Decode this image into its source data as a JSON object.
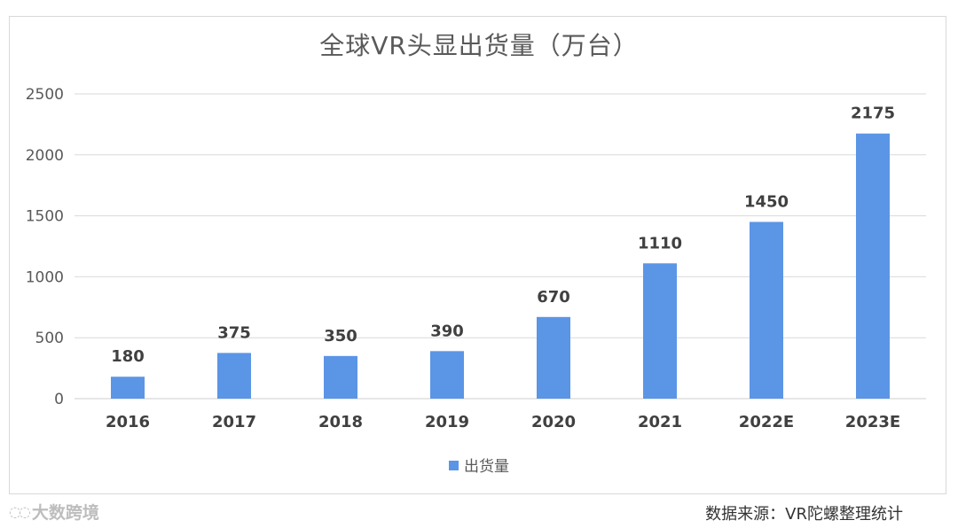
{
  "chart_data": {
    "type": "bar",
    "title": "全球VR头显出货量（万台）",
    "categories": [
      "2016",
      "2017",
      "2018",
      "2019",
      "2020",
      "2021",
      "2022E",
      "2023E"
    ],
    "series": [
      {
        "name": "出货量",
        "values": [
          180,
          375,
          350,
          390,
          670,
          1110,
          1450,
          2175
        ]
      }
    ],
    "value_labels": [
      "180",
      "375",
      "350",
      "390",
      "670",
      "1110",
      "1450",
      "2175"
    ],
    "ylim": [
      0,
      2500
    ],
    "yticks": [
      "0",
      "500",
      "1000",
      "1500",
      "2000",
      "2500"
    ],
    "grid": true,
    "legend": "bottom",
    "bar_color": "#5b95e6"
  },
  "footer": {
    "source": "数据来源：VR陀螺整理统计",
    "logo_text": "大数跨境"
  }
}
